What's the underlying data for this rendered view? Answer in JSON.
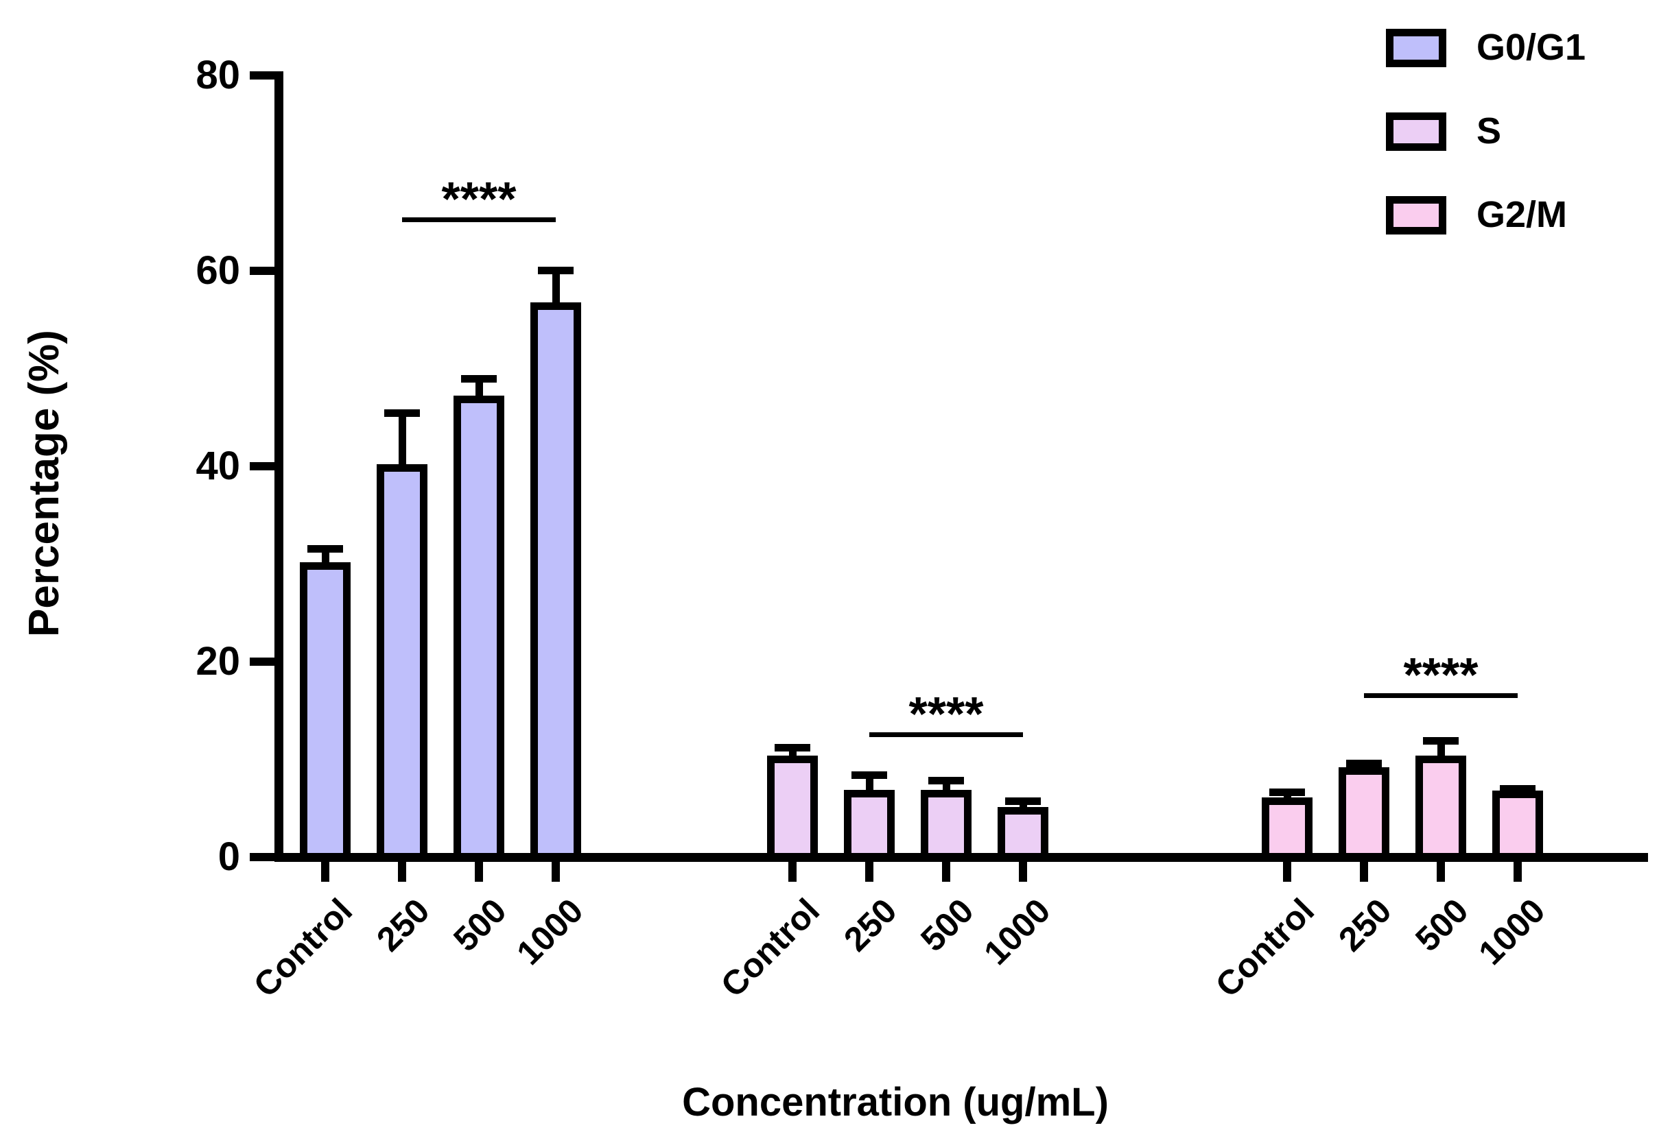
{
  "chart_data": {
    "type": "bar",
    "title": "",
    "xlabel": "Concentration (ug/mL)",
    "ylabel": "Percentage (%)",
    "ylim": [
      0,
      80
    ],
    "yticks": [
      0,
      20,
      40,
      60,
      80
    ],
    "grid": false,
    "categories": [
      "Control",
      "250",
      "500",
      "1000"
    ],
    "series": [
      {
        "name": "G0/G1",
        "color": "#bfbffb",
        "values": [
          30.2,
          40.2,
          47.2,
          56.8
        ],
        "errors": [
          1.7,
          5.6,
          2.1,
          3.6
        ]
      },
      {
        "name": "S",
        "color": "#eccff5",
        "values": [
          10.4,
          6.9,
          6.9,
          5.1
        ],
        "errors": [
          1.2,
          1.9,
          1.3,
          1.0
        ]
      },
      {
        "name": "G2/M",
        "color": "#facdee",
        "values": [
          6.1,
          9.2,
          10.4,
          6.8
        ],
        "errors": [
          0.9,
          0.8,
          1.9,
          0.6
        ]
      }
    ],
    "significance": [
      {
        "series": "G0/G1",
        "from": "250",
        "to": "1000",
        "label": "****",
        "line_y": 65.5
      },
      {
        "series": "S",
        "from": "250",
        "to": "1000",
        "label": "****",
        "line_y": 12.8
      },
      {
        "series": "G2/M",
        "from": "250",
        "to": "1000",
        "label": "****",
        "line_y": 16.8
      }
    ],
    "legend": {
      "position": "top-right",
      "entries": [
        "G0/G1",
        "S",
        "G2/M"
      ]
    },
    "axis_color": "#000000",
    "background_color": "#ffffff"
  }
}
